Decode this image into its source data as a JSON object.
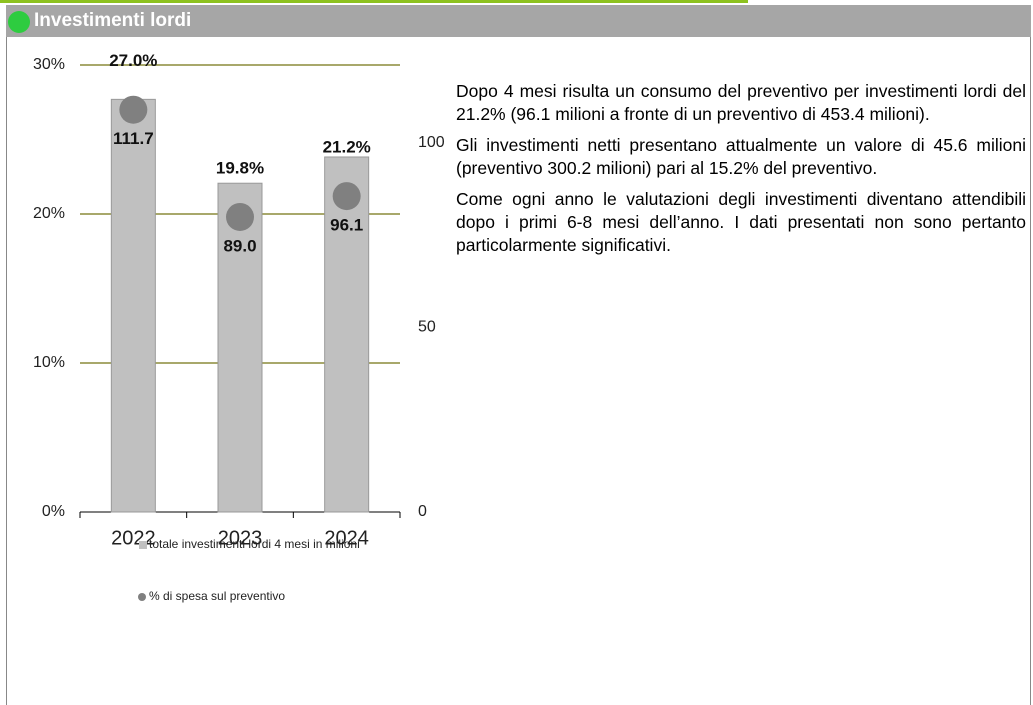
{
  "header": {
    "title": "Investimenti lordi"
  },
  "text": {
    "paragraphs": [
      "Dopo 4 mesi risulta un consumo del preventivo per investimenti lordi del 21.2% (96.1 milioni a fronte di un preventivo di 453.4 milioni).",
      "Gli investimenti netti presentano attualmente un valore di 45.6 milioni (preventivo 300.2 milioni) pari al 15.2% del preventivo.",
      "Come ogni anno le valutazioni degli investimenti diventano attendibili dopo i primi 6-8 mesi dell’anno. I dati presentati non sono pertanto particolarmente significativi."
    ]
  },
  "chart_data": {
    "type": "bar",
    "categories": [
      "2022",
      "2023",
      "2024"
    ],
    "series": [
      {
        "name": "totale investimenti lordi 4 mesi in milioni",
        "type": "bar",
        "axis": "y2",
        "color": "#c0c0c0",
        "values": [
          111.7,
          89.0,
          96.1
        ],
        "value_labels": [
          "111.7",
          "89.0",
          "96.1"
        ]
      },
      {
        "name": "% di spesa sul preventivo",
        "type": "dot",
        "color": "#808080",
        "values": [
          27.0,
          19.8,
          21.2
        ],
        "value_labels": [
          "27.0%",
          "19.8%",
          "21.2%"
        ]
      }
    ],
    "ylim": [
      0,
      30
    ],
    "yticks": [
      {
        "value": 0,
        "label": "0%"
      },
      {
        "value": 10,
        "label": "10%"
      },
      {
        "value": 20,
        "label": "20%"
      },
      {
        "value": 30,
        "label": "30%"
      }
    ],
    "y2lim": [
      0,
      121
    ],
    "y2ticks": [
      0,
      50,
      100
    ],
    "grid": true,
    "grid_color": "#8b8b3a"
  }
}
